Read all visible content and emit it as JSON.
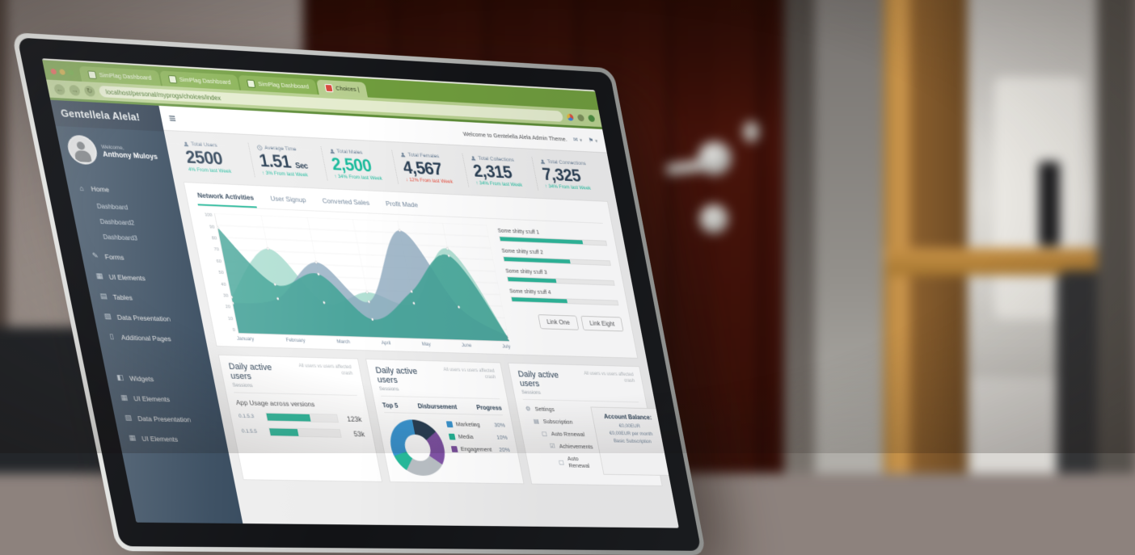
{
  "browser": {
    "tabs": [
      {
        "label": "SimPlag Dashboard"
      },
      {
        "label": "SimPlag Dashboard"
      },
      {
        "label": "SimPlag Dashboard"
      },
      {
        "label": "Choices |"
      }
    ],
    "url": "localhost/personal/myprogs/choices/index"
  },
  "sidebar": {
    "logo": "Gentellela Alela!",
    "welcome": "Welcome,",
    "username": "Anthony Muloys",
    "menu": [
      {
        "label": "Home",
        "children": [
          "Dashboard",
          "Dashboard2",
          "Dashboard3"
        ]
      },
      {
        "label": "Forms"
      },
      {
        "label": "UI Elements"
      },
      {
        "label": "Tables"
      },
      {
        "label": "Data Presentation"
      },
      {
        "label": "Additional Pages"
      }
    ],
    "menu_secondary": [
      "Widgets",
      "UI Elements",
      "Data Presentation",
      "UI Elements"
    ]
  },
  "topnav": {
    "welcome_text": "Welcome to Gentelella Alela Admin Theme."
  },
  "stats": [
    {
      "label": "Total Users",
      "value": "2500",
      "change": "4% From last Week",
      "dir": "up"
    },
    {
      "label": "Average Time",
      "value": "1.51",
      "unit": "Sec",
      "change": "3% From last Week",
      "dir": "up"
    },
    {
      "label": "Total Males",
      "value": "2,500",
      "change": "34% From last Week",
      "dir": "up",
      "highlight": true
    },
    {
      "label": "Total Females",
      "value": "4,567",
      "change": "12% From last Week",
      "dir": "down"
    },
    {
      "label": "Total Collections",
      "value": "2,315",
      "change": "34% From last Week",
      "dir": "up"
    },
    {
      "label": "Total Connections",
      "value": "7,325",
      "change": "34% From last Week",
      "dir": "up"
    }
  ],
  "panel": {
    "tabs": [
      {
        "label": "Network Activities",
        "active": true
      },
      {
        "label": "User Signup"
      },
      {
        "label": "Converted Sales"
      },
      {
        "label": "Profit Made"
      }
    ],
    "legend": [
      {
        "label": "Some shitty stuff 1",
        "pct": 78
      },
      {
        "label": "Some shitty stuff 2",
        "pct": 62
      },
      {
        "label": "Some shitty stuff 3",
        "pct": 45
      },
      {
        "label": "Some shitty stuff 4",
        "pct": 52
      }
    ],
    "links": [
      "Link One",
      "Link Eight"
    ]
  },
  "cards": {
    "shared_title": "Daily active users",
    "shared_subtitle": "Sessions",
    "shared_note": "All users vs users affected crash",
    "app_usage": {
      "heading": "App Usage across versions",
      "rows": [
        {
          "version": "0.1.5.3",
          "value": "123k",
          "pct": 62
        },
        {
          "version": "0.1.5.5",
          "value": "53k",
          "pct": 40
        }
      ]
    },
    "top5": {
      "columns": [
        "Top 5",
        "Disbursement",
        "Progress"
      ],
      "legend": [
        {
          "label": "Marketing",
          "value": "30%",
          "color": "#3b97d3"
        },
        {
          "label": "Media",
          "value": "10%",
          "color": "#26b99a"
        },
        {
          "label": "Engagement",
          "value": "20%",
          "color": "#8053a5"
        }
      ]
    },
    "settings": {
      "items": [
        "Settings",
        "Subscription",
        "Auto Renewal",
        "Achievements",
        "Auto Renewal"
      ],
      "account": {
        "title": "Account Balance:",
        "line1": "€0,00EUR",
        "line2": "€0,00EUR per month",
        "line3": "Basic Subscription"
      }
    }
  },
  "chart_data": [
    {
      "type": "area",
      "title": "Network Activities",
      "x": [
        "January",
        "February",
        "March",
        "April",
        "May",
        "June",
        "July"
      ],
      "ylim": [
        0,
        100
      ],
      "yticks": [
        0,
        10,
        20,
        30,
        40,
        50,
        60,
        70,
        80,
        90,
        100
      ],
      "grid": true,
      "legend_position": "none",
      "series": [
        {
          "name": "mint",
          "color": "#aeded2",
          "values": [
            30,
            72,
            28,
            38,
            30,
            78,
            2
          ]
        },
        {
          "name": "slate",
          "color": "#8aa6bd",
          "values": [
            25,
            30,
            62,
            30,
            92,
            28,
            4
          ]
        },
        {
          "name": "teal",
          "color": "#3fa295",
          "values": [
            88,
            42,
            52,
            15,
            40,
            72,
            2
          ]
        }
      ]
    },
    {
      "type": "pie",
      "title": "Top 5",
      "donut": true,
      "slices": [
        {
          "label": "Marketing",
          "value": 30,
          "color": "#3b97d3"
        },
        {
          "label": "Media",
          "value": 10,
          "color": "#26b99a"
        },
        {
          "label": "Engagement",
          "value": 20,
          "color": "#8053a5"
        },
        {
          "label": "",
          "value": 25,
          "color": "#b9bfc4"
        },
        {
          "label": "",
          "value": 15,
          "color": "#2a3f54"
        }
      ]
    }
  ],
  "colors": {
    "accent": "#26b99a",
    "sidebar": "#2a3f54",
    "danger": "#e74c3c",
    "chrome_green": "#6f9c3d"
  }
}
